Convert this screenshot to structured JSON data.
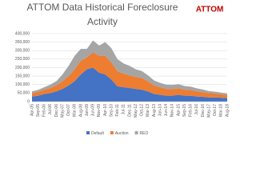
{
  "chart_data": {
    "type": "stacked-area",
    "title": "ATTOM Data Historical Foreclosure Activity",
    "logo": "ATTOM",
    "categories": [
      "Apr-05",
      "Sep-05",
      "Feb-06",
      "Jul-06",
      "Dec-06",
      "May-07",
      "Oct-07",
      "Mar-08",
      "Aug-08",
      "Jan-09",
      "Jun-09",
      "Nov-09",
      "Apr-10",
      "Sep-10",
      "Feb-11",
      "Jul-11",
      "Dec-11",
      "May-12",
      "Oct-12",
      "Mar-13",
      "Aug-13",
      "Jan-14",
      "Jun-14",
      "Nov-14",
      "Apr-15",
      "Sep-15",
      "Feb-16",
      "Jul-16",
      "Dec-16",
      "May-17",
      "Oct-17",
      "Mar-18",
      "Aug-18"
    ],
    "series": [
      {
        "name": "Default",
        "color": "#4472c4",
        "values": [
          30000,
          35000,
          45000,
          50000,
          60000,
          75000,
          95000,
          120000,
          160000,
          190000,
          200000,
          170000,
          160000,
          130000,
          90000,
          85000,
          80000,
          75000,
          70000,
          60000,
          45000,
          40000,
          35000,
          35000,
          40000,
          35000,
          35000,
          30000,
          28000,
          25000,
          25000,
          23000,
          20000
        ]
      },
      {
        "name": "Auction",
        "color": "#ed7d31",
        "values": [
          20000,
          22000,
          25000,
          30000,
          35000,
          45000,
          55000,
          70000,
          80000,
          70000,
          90000,
          100000,
          110000,
          100000,
          90000,
          80000,
          75000,
          70000,
          70000,
          60000,
          50000,
          45000,
          40000,
          38000,
          38000,
          35000,
          33000,
          30000,
          28000,
          25000,
          23000,
          20000,
          18000
        ]
      },
      {
        "name": "REO",
        "color": "#a5a5a5",
        "values": [
          10000,
          12000,
          15000,
          20000,
          25000,
          40000,
          60000,
          80000,
          70000,
          50000,
          70000,
          60000,
          80000,
          85000,
          70000,
          60000,
          55000,
          45000,
          40000,
          35000,
          30000,
          25000,
          25000,
          25000,
          25000,
          22000,
          20000,
          18000,
          15000,
          12000,
          10000,
          10000,
          9000
        ]
      }
    ],
    "ylim": [
      0,
      400000
    ],
    "yticks": [
      0,
      {
        "value": 50000,
        "label": "50,000"
      },
      {
        "value": 100000,
        "label": "100,000"
      },
      {
        "value": 150000,
        "label": "150,000"
      },
      {
        "value": 200000,
        "label": "200,000"
      },
      {
        "value": 250000,
        "label": "250,000"
      },
      {
        "value": 300000,
        "label": "300,000"
      },
      {
        "value": 350000,
        "label": "350,000"
      },
      {
        "value": 400000,
        "label": "400,000"
      }
    ],
    "grid": true
  }
}
